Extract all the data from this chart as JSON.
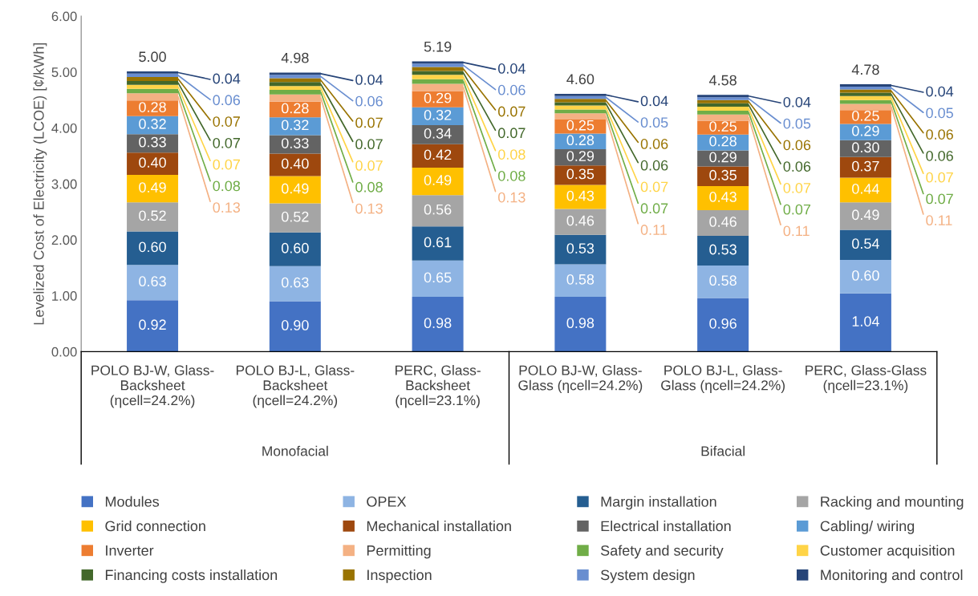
{
  "chart_data": {
    "type": "bar",
    "stacked": true,
    "ylabel": "Levelized Cost of Electricity (LCOE) [¢/kWh]",
    "categories": [
      "POLO BJ-W, Glass-\nBacksheet\n(ηcell=24.2%)",
      "POLO BJ-L, Glass-\nBacksheet\n(ηcell=24.2%)",
      "PERC, Glass-\nBacksheet\n(ηcell=23.1%)",
      "POLO BJ-W, Glass-\nGlass (ηcell=24.2%)",
      "POLO BJ-L, Glass-\nGlass (ηcell=24.2%)",
      "PERC, Glass-Glass\n(ηcell=23.1%)"
    ],
    "annotations": [
      "Monofacial",
      "Bifacial"
    ],
    "ylim": [
      0,
      6
    ],
    "yticks": [
      {
        "value": 0,
        "label": "0.00"
      },
      {
        "value": 1,
        "label": "1.00"
      },
      {
        "value": 2,
        "label": "2.00"
      },
      {
        "value": 3,
        "label": "3.00"
      },
      {
        "value": 4,
        "label": "4.00"
      },
      {
        "value": 5,
        "label": "5.00"
      },
      {
        "value": 6,
        "label": "6.00"
      }
    ],
    "grid": false,
    "legend": "bottom",
    "totals": [
      "5.00",
      "4.98",
      "5.19",
      "4.60",
      "4.58",
      "4.78"
    ],
    "series": [
      {
        "name": "Modules",
        "color": "#4472c4",
        "values": [
          0.92,
          0.9,
          0.98,
          0.98,
          0.96,
          1.04
        ],
        "value_labels": [
          "0.92",
          "0.90",
          "0.98",
          "0.98",
          "0.96",
          "1.04"
        ]
      },
      {
        "name": "OPEX",
        "color": "#8eb4e3",
        "values": [
          0.63,
          0.63,
          0.65,
          0.58,
          0.58,
          0.6
        ],
        "value_labels": [
          "0.63",
          "0.63",
          "0.65",
          "0.58",
          "0.58",
          "0.60"
        ]
      },
      {
        "name": "Margin installation",
        "color": "#255e91",
        "values": [
          0.6,
          0.6,
          0.61,
          0.53,
          0.53,
          0.54
        ],
        "value_labels": [
          "0.60",
          "0.60",
          "0.61",
          "0.53",
          "0.53",
          "0.54"
        ]
      },
      {
        "name": "Racking and mounting",
        "color": "#a5a5a5",
        "values": [
          0.52,
          0.52,
          0.56,
          0.46,
          0.46,
          0.49
        ],
        "value_labels": [
          "0.52",
          "0.52",
          "0.56",
          "0.46",
          "0.46",
          "0.49"
        ]
      },
      {
        "name": "Grid connection",
        "color": "#ffc000",
        "values": [
          0.49,
          0.49,
          0.49,
          0.43,
          0.43,
          0.44
        ],
        "value_labels": [
          "0.49",
          "0.49",
          "0.49",
          "0.43",
          "0.43",
          "0.44"
        ]
      },
      {
        "name": "Mechanical installation",
        "color": "#9e480e",
        "values": [
          0.4,
          0.4,
          0.42,
          0.35,
          0.35,
          0.37
        ],
        "value_labels": [
          "0.40",
          "0.40",
          "0.42",
          "0.35",
          "0.35",
          "0.37"
        ]
      },
      {
        "name": "Electrical installation",
        "color": "#636363",
        "values": [
          0.33,
          0.33,
          0.34,
          0.29,
          0.29,
          0.3
        ],
        "value_labels": [
          "0.33",
          "0.33",
          "0.34",
          "0.29",
          "0.29",
          "0.30"
        ]
      },
      {
        "name": "Cabling/ wiring",
        "color": "#5b9bd5",
        "values": [
          0.32,
          0.32,
          0.32,
          0.28,
          0.28,
          0.29
        ],
        "value_labels": [
          "0.32",
          "0.32",
          "0.32",
          "0.28",
          "0.28",
          "0.29"
        ]
      },
      {
        "name": "Inverter",
        "color": "#ed7d31",
        "values": [
          0.28,
          0.28,
          0.29,
          0.25,
          0.25,
          0.25
        ],
        "value_labels": [
          "0.28",
          "0.28",
          "0.29",
          "0.25",
          "0.25",
          "0.25"
        ]
      },
      {
        "name": "Permitting",
        "color": "#f4b183",
        "values": [
          0.13,
          0.13,
          0.13,
          0.11,
          0.11,
          0.11
        ],
        "value_labels": [
          "0.13",
          "0.13",
          "0.13",
          "0.11",
          "0.11",
          "0.11"
        ]
      },
      {
        "name": "Safety and security",
        "color": "#70ad47",
        "values": [
          0.08,
          0.08,
          0.08,
          0.07,
          0.07,
          0.07
        ],
        "value_labels": [
          "0.08",
          "0.08",
          "0.08",
          "0.07",
          "0.07",
          "0.07"
        ]
      },
      {
        "name": "Customer acquisition",
        "color": "#ffd447",
        "values": [
          0.07,
          0.07,
          0.08,
          0.07,
          0.07,
          0.07
        ],
        "value_labels": [
          "0.07",
          "0.07",
          "0.08",
          "0.07",
          "0.07",
          "0.07"
        ]
      },
      {
        "name": "Financing costs installation",
        "color": "#43682b",
        "values": [
          0.07,
          0.07,
          0.07,
          0.06,
          0.06,
          0.06
        ],
        "value_labels": [
          "0.07",
          "0.07",
          "0.07",
          "0.06",
          "0.06",
          "0.06"
        ]
      },
      {
        "name": "Inspection",
        "color": "#997300",
        "values": [
          0.07,
          0.07,
          0.07,
          0.06,
          0.06,
          0.06
        ],
        "value_labels": [
          "0.07",
          "0.07",
          "0.07",
          "0.06",
          "0.06",
          "0.06"
        ]
      },
      {
        "name": "System design",
        "color": "#698ed0",
        "values": [
          0.06,
          0.06,
          0.06,
          0.05,
          0.05,
          0.05
        ],
        "value_labels": [
          "0.06",
          "0.06",
          "0.06",
          "0.05",
          "0.05",
          "0.05"
        ]
      },
      {
        "name": "Monitoring and control",
        "color": "#264478",
        "values": [
          0.04,
          0.04,
          0.04,
          0.04,
          0.04,
          0.04
        ],
        "value_labels": [
          "0.04",
          "0.04",
          "0.04",
          "0.04",
          "0.04",
          "0.04"
        ]
      }
    ]
  }
}
